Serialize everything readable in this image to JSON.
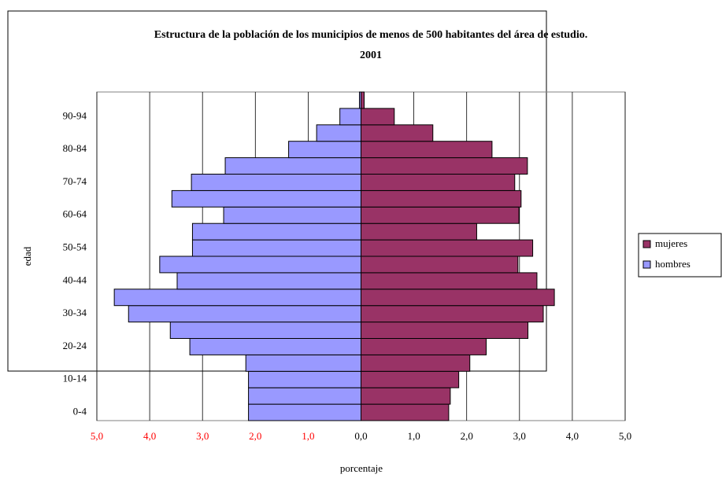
{
  "chart_data": {
    "type": "pyramid",
    "title": "Estructura de la población de los municipios de menos de 500 habitantes del área de estudio.",
    "subtitle": "2001",
    "y_label": "edad",
    "x_label": "porcentaje",
    "categories": [
      "0-4",
      null,
      "10-14",
      null,
      "20-24",
      null,
      "30-34",
      null,
      "40-44",
      null,
      "50-54",
      null,
      "60-64",
      null,
      "70-74",
      null,
      "80-84",
      null,
      "90-94",
      null
    ],
    "series": [
      {
        "name": "mujeres",
        "color": "#993366",
        "values": [
          1.66,
          1.69,
          1.85,
          2.06,
          2.37,
          3.16,
          3.45,
          3.66,
          3.33,
          2.97,
          3.25,
          2.19,
          2.99,
          3.03,
          2.91,
          3.15,
          2.48,
          1.36,
          0.63,
          0.06
        ]
      },
      {
        "name": "hombres",
        "color": "#9999ff",
        "values": [
          -2.13,
          -2.13,
          -2.13,
          -2.18,
          -3.24,
          -3.61,
          -4.4,
          -4.67,
          -3.48,
          -3.81,
          -3.19,
          -3.19,
          -2.6,
          -3.58,
          -3.21,
          -2.57,
          -1.37,
          -0.84,
          -0.4,
          -0.03
        ]
      }
    ],
    "xlim": [
      -5,
      5
    ],
    "xticks": [
      {
        "value": -5,
        "label": "5,0"
      },
      {
        "value": -4,
        "label": "4,0"
      },
      {
        "value": -3,
        "label": "3,0"
      },
      {
        "value": -2,
        "label": "2,0"
      },
      {
        "value": -1,
        "label": "1,0"
      },
      {
        "value": 0,
        "label": "0,0"
      },
      {
        "value": 1,
        "label": "1,0"
      },
      {
        "value": 2,
        "label": "2,0"
      },
      {
        "value": 3,
        "label": "3,0"
      },
      {
        "value": 4,
        "label": "4,0"
      },
      {
        "value": 5,
        "label": "5,0"
      }
    ],
    "grid": true,
    "legend": "right"
  }
}
